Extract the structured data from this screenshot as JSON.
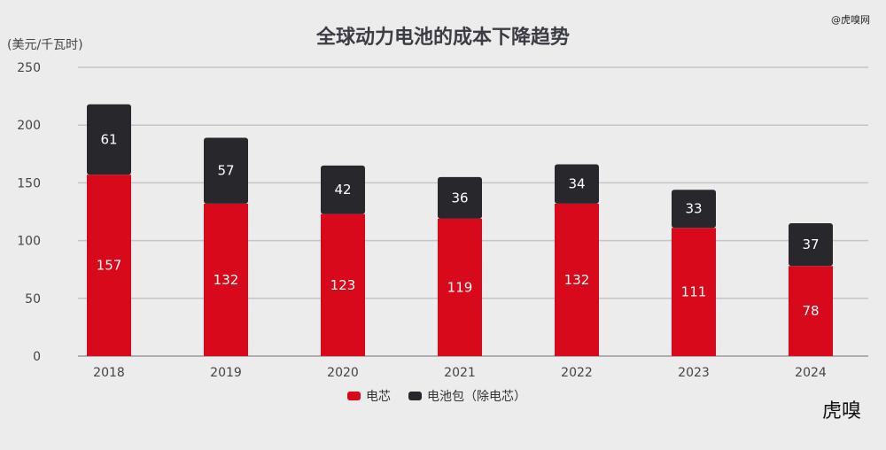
{
  "watermark": "@虎嗅网",
  "logo": "虎嗅",
  "chart_data": {
    "type": "bar",
    "stacked": true,
    "title": "全球动力电池的成本下降趋势",
    "ylabel": "(美元/千瓦时)",
    "xlabel": "",
    "ylim": [
      0,
      250
    ],
    "yticks": [
      0,
      50,
      100,
      150,
      200,
      250
    ],
    "grid": true,
    "legend_position": "bottom",
    "categories": [
      "2018",
      "2019",
      "2020",
      "2021",
      "2022",
      "2023",
      "2024"
    ],
    "series": [
      {
        "name": "电芯",
        "color": "#d7091a",
        "values": [
          157,
          132,
          123,
          119,
          132,
          111,
          78
        ]
      },
      {
        "name": "电池包（除电芯）",
        "color": "#27272c",
        "values": [
          61,
          57,
          42,
          36,
          34,
          33,
          37
        ]
      }
    ]
  }
}
